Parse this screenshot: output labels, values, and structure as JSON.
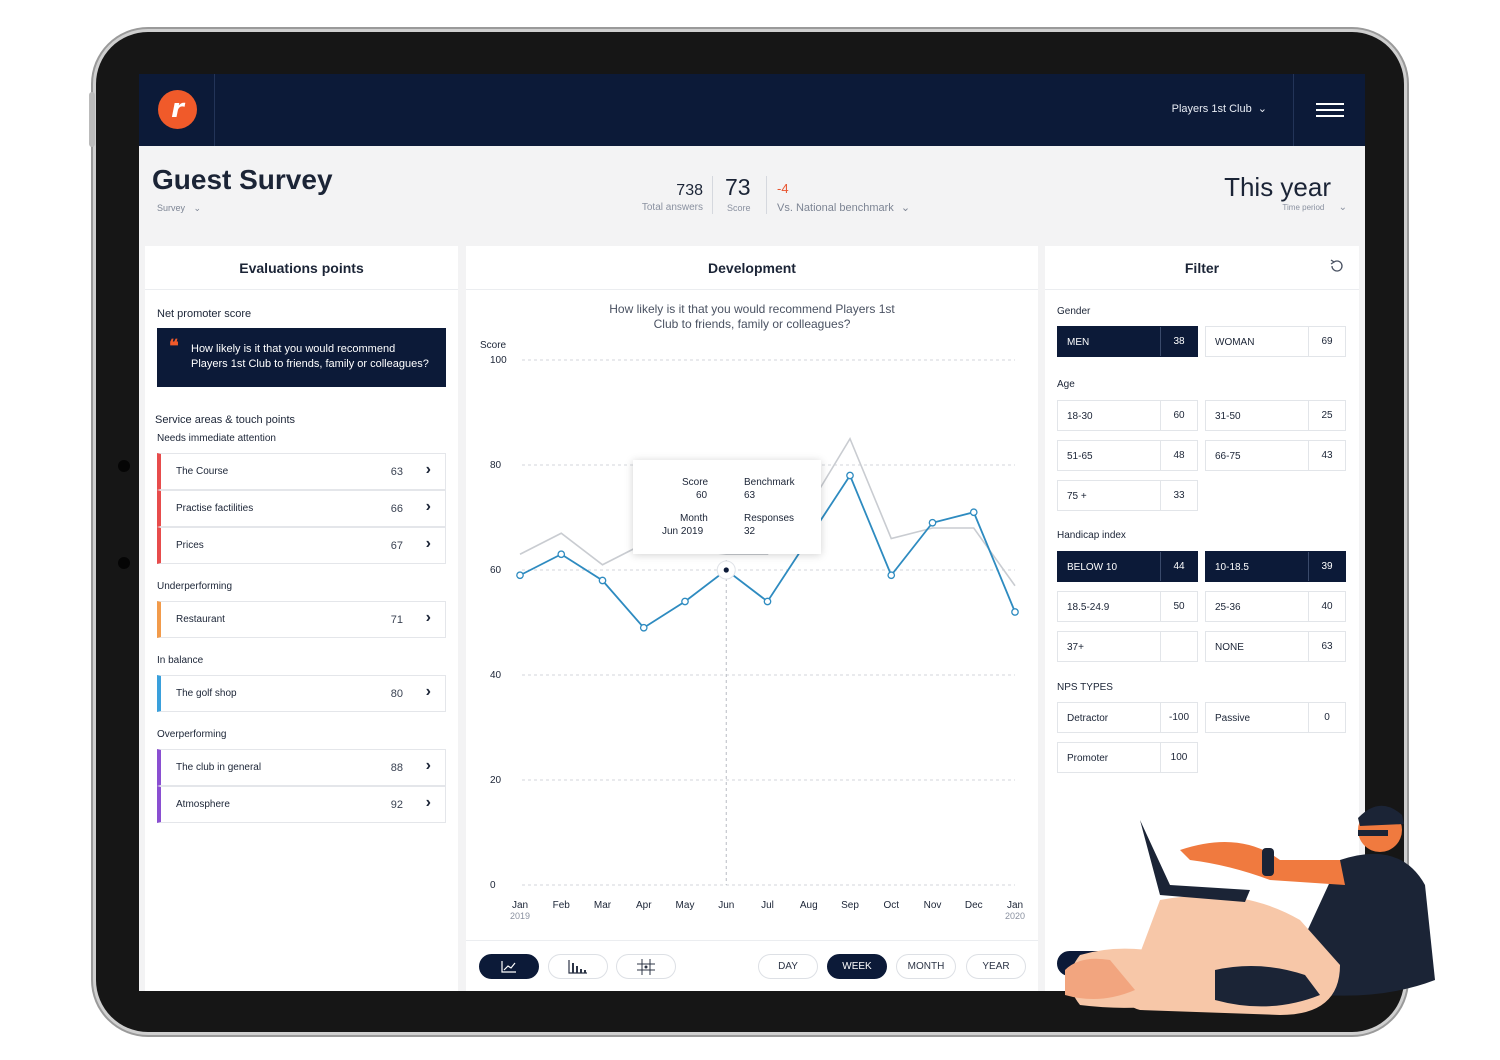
{
  "topbar": {
    "logo_letter": "r",
    "club_label": "Players 1st Club",
    "club_chevron": "⌄"
  },
  "header": {
    "title": "Guest Survey",
    "survey_label": "Survey",
    "total_answers": "738",
    "total_answers_label": "Total answers",
    "score": "73",
    "score_label": "Score",
    "benchmark_delta": "-4",
    "benchmark_label": "Vs. National benchmark",
    "period": "This year",
    "period_label": "Time period"
  },
  "evaluation": {
    "title": "Evaluations points",
    "nps_label": "Net promoter score",
    "quote_mark": "❝",
    "quote": "How likely is it that you would recommend Players 1st Club to friends, family or colleagues?",
    "service_label": "Service areas & touch points",
    "groups": [
      {
        "label": "Needs immediate attention",
        "color": "#e74c4c",
        "items": [
          {
            "name": "The Course",
            "value": "63"
          },
          {
            "name": "Practise factilities",
            "value": "66"
          },
          {
            "name": "Prices",
            "value": "67"
          }
        ]
      },
      {
        "label": "Underperforming",
        "color": "#f29b4b",
        "items": [
          {
            "name": "Restaurant",
            "value": "71"
          }
        ]
      },
      {
        "label": "In balance",
        "color": "#3aa0dc",
        "items": [
          {
            "name": "The golf shop",
            "value": "80"
          }
        ]
      },
      {
        "label": "Overperforming",
        "color": "#8a4fd1",
        "items": [
          {
            "name": "The club in general",
            "value": "88"
          },
          {
            "name": "Atmosphere",
            "value": "92"
          }
        ]
      }
    ]
  },
  "development": {
    "title": "Development",
    "question_line1": "How likely is it that you would recommend Players 1st",
    "question_line2": "Club to friends, family or colleagues?",
    "tooltip": {
      "score_label": "Score",
      "score": "60",
      "benchmark_label": "Benchmark",
      "benchmark": "63",
      "month_label": "Month",
      "month": "Jun 2019",
      "responses_label": "Responses",
      "responses": "32"
    },
    "view_icons": [
      "line-chart-icon",
      "bar-chart-icon",
      "scatter-grid-icon"
    ],
    "ranges": [
      "DAY",
      "WEEK",
      "MONTH",
      "YEAR"
    ],
    "active_range": "WEEK"
  },
  "chart_data": {
    "type": "line",
    "ylabel": "Score",
    "ylim": [
      0,
      100
    ],
    "yticks": [
      "100",
      "80",
      "60",
      "40",
      "20",
      "0"
    ],
    "categories": [
      "Jan",
      "Feb",
      "Mar",
      "Apr",
      "May",
      "Jun",
      "Jul",
      "Aug",
      "Sep",
      "Oct",
      "Nov",
      "Dec",
      "Jan"
    ],
    "category_years": [
      "2019",
      "",
      "",
      "",
      "",
      "",
      "",
      "",
      "",
      "",
      "",
      "",
      "2020"
    ],
    "series": [
      {
        "values": [
          59,
          63,
          58,
          49,
          54,
          60,
          54,
          66,
          78,
          59,
          69,
          71,
          52
        ],
        "color": "#2e8bc0"
      },
      {
        "values": [
          63,
          67,
          61,
          65,
          64,
          63,
          63,
          72,
          85,
          66,
          68,
          68,
          57
        ],
        "color": "#c9ccd1"
      }
    ],
    "highlight_index": 5,
    "grid": true
  },
  "filter": {
    "title": "Filter",
    "groups": [
      {
        "label": "Gender",
        "chips": [
          {
            "name": "MEN",
            "count": "38",
            "on": true
          },
          {
            "name": "WOMAN",
            "count": "69",
            "on": false
          }
        ]
      },
      {
        "label": "Age",
        "chips": [
          {
            "name": "18-30",
            "count": "60",
            "on": false
          },
          {
            "name": "31-50",
            "count": "25",
            "on": false
          },
          {
            "name": "51-65",
            "count": "48",
            "on": false
          },
          {
            "name": "66-75",
            "count": "43",
            "on": false
          },
          {
            "name": "75 +",
            "count": "33",
            "on": false
          }
        ]
      },
      {
        "label": "Handicap index",
        "chips": [
          {
            "name": "BELOW 10",
            "count": "44",
            "on": true
          },
          {
            "name": "10-18.5",
            "count": "39",
            "on": true
          },
          {
            "name": "18.5-24.9",
            "count": "50",
            "on": false
          },
          {
            "name": "25-36",
            "count": "40",
            "on": false
          },
          {
            "name": "37+",
            "count": "",
            "on": false
          },
          {
            "name": "NONE",
            "count": "63",
            "on": false
          }
        ]
      },
      {
        "label": "NPS TYPES",
        "chips": [
          {
            "name": "Detractor",
            "count": "-100",
            "on": false
          },
          {
            "name": "Passive",
            "count": "0",
            "on": false
          },
          {
            "name": "Promoter",
            "count": "100",
            "on": false
          }
        ]
      }
    ],
    "bottom_button": "#"
  }
}
